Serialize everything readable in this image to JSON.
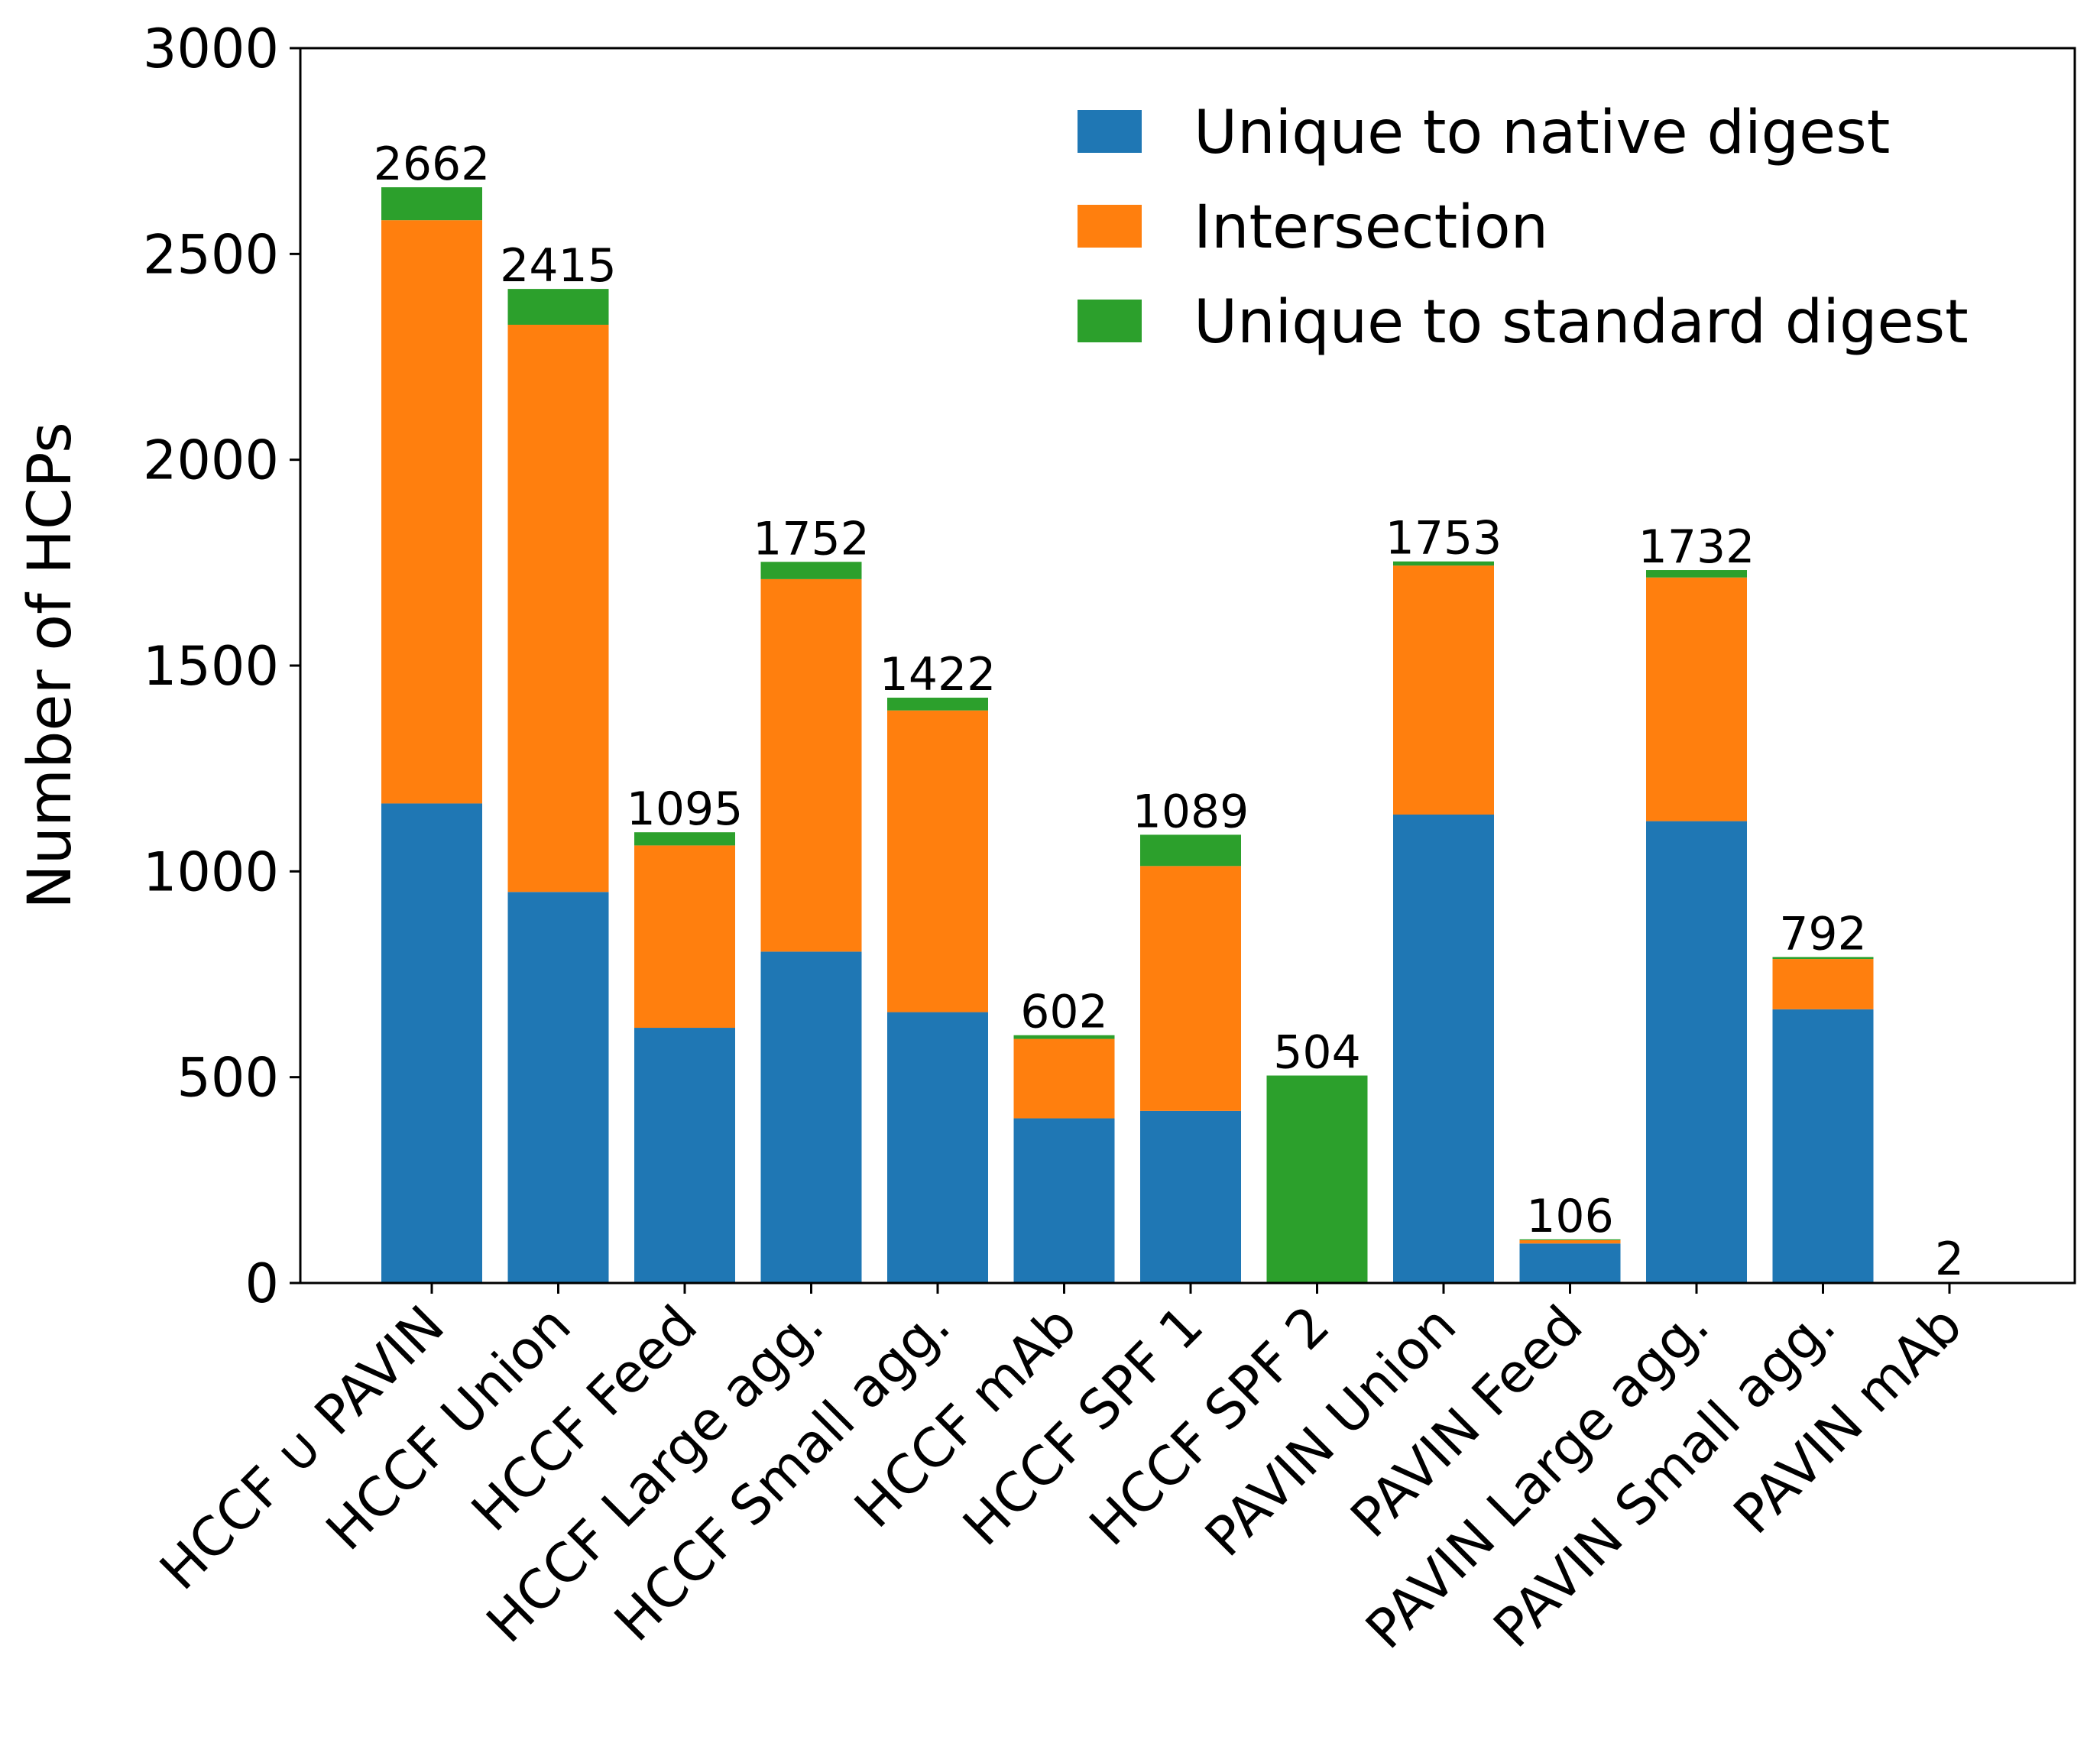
{
  "chart_data": {
    "type": "bar",
    "stacked": true,
    "xlabel": "",
    "ylabel": "Number of HCPs",
    "ylim": [
      0,
      3000
    ],
    "yticks": [
      0,
      500,
      1000,
      1500,
      2000,
      2500,
      3000
    ],
    "grid": false,
    "legend_position": "top-right",
    "categories": [
      "HCCF ∪ PAVIN",
      "HCCF Union",
      "HCCF Feed",
      "HCCF Large agg.",
      "HCCF Small agg.",
      "HCCF mAb",
      "HCCF SPF 1",
      "HCCF SPF 2",
      "PAVIN Union",
      "PAVIN Feed",
      "PAVIN Large agg.",
      "PAVIN Small agg.",
      "PAVIN mAb"
    ],
    "series": [
      {
        "name": "Unique to native digest",
        "color": "#1f77b4",
        "values": [
          1165,
          950,
          620,
          805,
          658,
          400,
          418,
          0,
          1138,
          96,
          1122,
          665,
          1
        ]
      },
      {
        "name": "Intersection",
        "color": "#ff7f0e",
        "values": [
          1417,
          1378,
          443,
          905,
          733,
          193,
          595,
          0,
          605,
          8,
          592,
          122,
          1
        ]
      },
      {
        "name": "Unique to standard digest",
        "color": "#2ca02c",
        "values": [
          80,
          87,
          32,
          42,
          31,
          9,
          76,
          504,
          10,
          2,
          18,
          5,
          0
        ]
      }
    ],
    "totals": [
      2662,
      2415,
      1095,
      1752,
      1422,
      602,
      1089,
      504,
      1753,
      106,
      1732,
      792,
      2
    ]
  }
}
